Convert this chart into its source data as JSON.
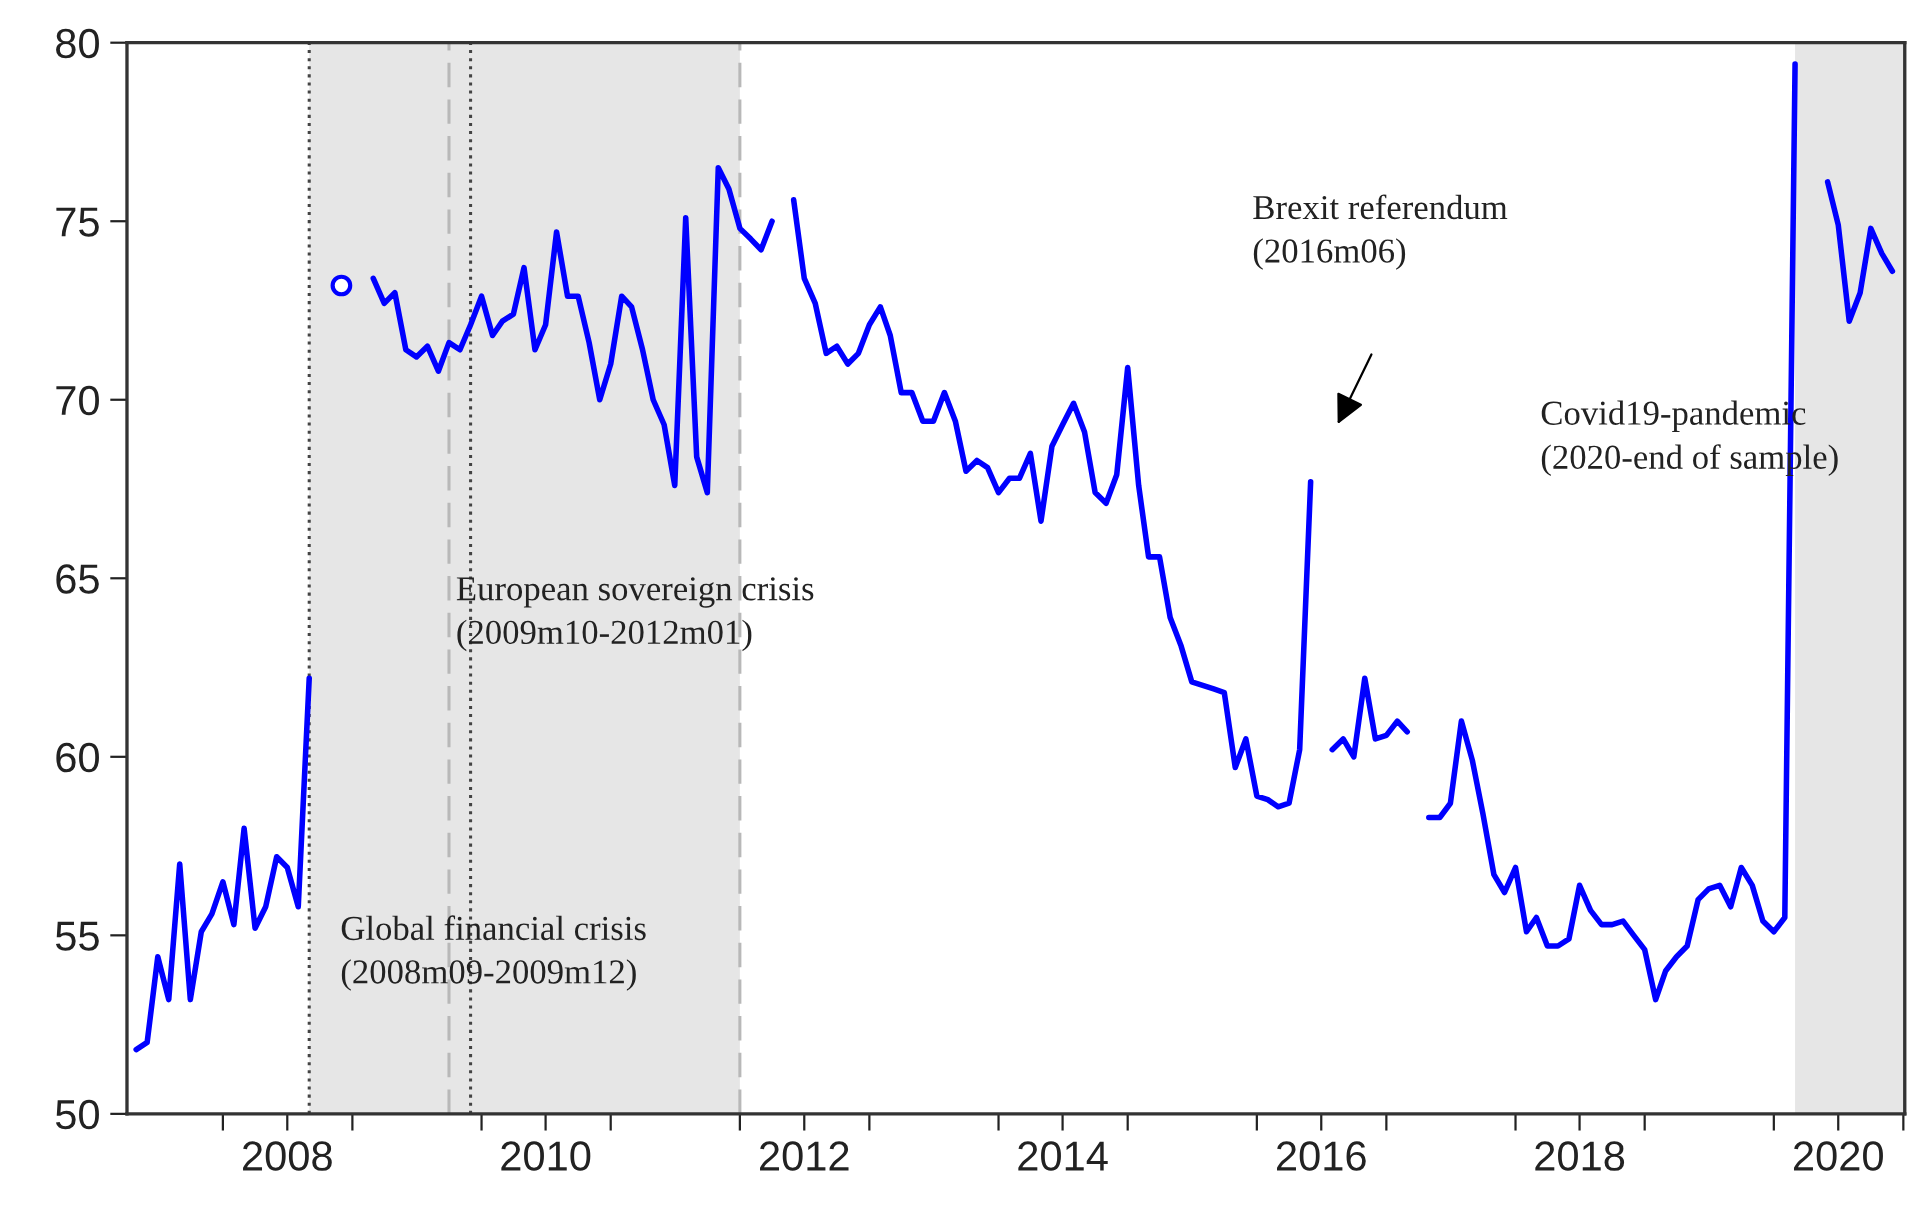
{
  "chart_data": {
    "type": "line",
    "x": [
      "2007-05",
      "2007-06",
      "2007-07",
      "2007-08",
      "2007-09",
      "2007-10",
      "2007-11",
      "2007-12",
      "2008-01",
      "2008-02",
      "2008-03",
      "2008-04",
      "2008-05",
      "2008-06",
      "2008-07",
      "2008-08",
      "2008-09",
      "2008-10",
      "2008-11",
      "2008-12",
      "2009-01",
      "2009-02",
      "2009-03",
      "2009-04",
      "2009-05",
      "2009-06",
      "2009-07",
      "2009-08",
      "2009-09",
      "2009-10",
      "2009-11",
      "2009-12",
      "2010-01",
      "2010-02",
      "2010-03",
      "2010-04",
      "2010-05",
      "2010-06",
      "2010-07",
      "2010-08",
      "2010-09",
      "2010-10",
      "2010-11",
      "2010-12",
      "2011-01",
      "2011-02",
      "2011-03",
      "2011-04",
      "2011-05",
      "2011-06",
      "2011-07",
      "2011-08",
      "2011-09",
      "2011-10",
      "2011-11",
      "2011-12",
      "2012-01",
      "2012-02",
      "2012-03",
      "2012-04",
      "2012-05",
      "2012-06",
      "2012-07",
      "2012-08",
      "2012-09",
      "2012-10",
      "2012-11",
      "2012-12",
      "2013-01",
      "2013-02",
      "2013-03",
      "2013-04",
      "2013-05",
      "2013-06",
      "2013-07",
      "2013-08",
      "2013-09",
      "2013-10",
      "2013-11",
      "2013-12",
      "2014-01",
      "2014-02",
      "2014-03",
      "2014-04",
      "2014-05",
      "2014-06",
      "2014-07",
      "2014-08",
      "2014-09",
      "2014-10",
      "2014-11",
      "2014-12",
      "2015-01",
      "2015-02",
      "2015-03",
      "2015-04",
      "2015-05",
      "2015-06",
      "2015-07",
      "2015-08",
      "2015-09",
      "2015-10",
      "2015-11",
      "2015-12",
      "2016-01",
      "2016-02",
      "2016-03",
      "2016-04",
      "2016-05",
      "2016-06",
      "2016-07",
      "2016-08",
      "2016-09",
      "2016-10",
      "2016-11",
      "2016-12",
      "2017-01",
      "2017-02",
      "2017-03",
      "2017-04",
      "2017-05",
      "2017-06",
      "2017-07",
      "2017-08",
      "2017-09",
      "2017-10",
      "2017-11",
      "2017-12",
      "2018-01",
      "2018-02",
      "2018-03",
      "2018-04",
      "2018-05",
      "2018-06",
      "2018-07",
      "2018-08",
      "2018-09",
      "2018-10",
      "2018-11",
      "2018-12",
      "2019-01",
      "2019-02",
      "2019-03",
      "2019-04",
      "2019-05",
      "2019-06",
      "2019-07",
      "2019-08",
      "2019-09",
      "2019-10",
      "2019-11",
      "2019-12",
      "2020-01",
      "2020-02",
      "2020-03",
      "2020-04",
      "2020-05",
      "2020-06",
      "2020-07",
      "2020-08",
      "2020-09",
      "2020-10",
      "2020-11",
      "2020-12"
    ],
    "series": [
      {
        "color": "#0000ff",
        "values": [
          51.8,
          52.0,
          54.4,
          53.2,
          57.0,
          53.2,
          55.1,
          55.6,
          56.5,
          55.3,
          58.0,
          55.2,
          55.8,
          57.2,
          56.9,
          55.8,
          62.2,
          null,
          null,
          73.2,
          null,
          null,
          73.4,
          72.7,
          73.0,
          71.4,
          71.2,
          71.5,
          70.8,
          71.6,
          71.4,
          72.1,
          72.9,
          71.8,
          72.2,
          72.4,
          73.7,
          71.4,
          72.1,
          74.7,
          72.9,
          72.9,
          71.6,
          70.0,
          71.0,
          72.9,
          72.6,
          71.4,
          70.0,
          69.3,
          67.6,
          75.1,
          68.4,
          67.4,
          76.5,
          75.9,
          74.8,
          74.5,
          74.2,
          75.0,
          null,
          75.6,
          73.4,
          72.7,
          71.3,
          71.5,
          71.0,
          71.3,
          72.1,
          72.6,
          71.8,
          70.2,
          70.2,
          69.4,
          69.4,
          70.2,
          69.4,
          68.0,
          68.3,
          68.1,
          67.4,
          67.8,
          67.8,
          68.5,
          66.6,
          68.7,
          69.3,
          69.9,
          69.1,
          67.4,
          67.1,
          67.9,
          70.9,
          67.6,
          65.6,
          65.6,
          63.9,
          63.1,
          62.1,
          62.0,
          61.9,
          61.8,
          59.7,
          60.5,
          58.9,
          58.8,
          58.6,
          58.7,
          60.2,
          67.7,
          null,
          60.2,
          60.5,
          60.0,
          62.2,
          60.5,
          60.6,
          61.0,
          60.7,
          null,
          58.3,
          58.3,
          58.7,
          61.0,
          59.9,
          58.4,
          56.7,
          56.2,
          56.9,
          55.1,
          55.5,
          54.7,
          54.7,
          54.9,
          56.4,
          55.7,
          55.3,
          55.3,
          55.4,
          55.0,
          54.6,
          53.2,
          54.0,
          54.4,
          54.7,
          56.0,
          56.3,
          56.4,
          55.8,
          56.9,
          56.4,
          55.4,
          55.1,
          55.5,
          79.4,
          null,
          null,
          76.1,
          74.9,
          72.2,
          73.0,
          74.8,
          74.1,
          73.6
        ]
      }
    ],
    "xlim": [
      "2007-04-05",
      "2021-01-05"
    ],
    "xticks": [
      {
        "value": "2008-01",
        "label": null
      },
      {
        "value": "2008-07",
        "label": "2008"
      },
      {
        "value": "2009-01",
        "label": null
      },
      {
        "value": "2010-01",
        "label": null
      },
      {
        "value": "2010-07",
        "label": "2010"
      },
      {
        "value": "2011-01",
        "label": null
      },
      {
        "value": "2012-01",
        "label": null
      },
      {
        "value": "2012-07",
        "label": "2012"
      },
      {
        "value": "2013-01",
        "label": null
      },
      {
        "value": "2014-01",
        "label": null
      },
      {
        "value": "2014-07",
        "label": "2014"
      },
      {
        "value": "2015-01",
        "label": null
      },
      {
        "value": "2016-01",
        "label": null
      },
      {
        "value": "2016-07",
        "label": "2016"
      },
      {
        "value": "2017-01",
        "label": null
      },
      {
        "value": "2018-01",
        "label": null
      },
      {
        "value": "2018-07",
        "label": "2018"
      },
      {
        "value": "2019-01",
        "label": null
      },
      {
        "value": "2020-01",
        "label": null
      },
      {
        "value": "2020-07",
        "label": "2020"
      },
      {
        "value": "2021-01",
        "label": null
      }
    ],
    "ylim": [
      50,
      80
    ],
    "yticks": [
      50,
      55,
      60,
      65,
      70,
      75,
      80
    ],
    "grid": false,
    "legend": false,
    "marker": "none",
    "line_style": "solid",
    "bands": [
      {
        "axis": "x",
        "from": "2008-09",
        "to": "2009-12",
        "color": "#e6e6e6"
      },
      {
        "axis": "x",
        "from": "2009-10",
        "to": "2012-01",
        "color": "#e6e6e6"
      },
      {
        "axis": "x",
        "from": "2020-03",
        "to": "2021-01-05",
        "color": "#e6e6e6"
      }
    ],
    "ref_lines": [
      {
        "axis": "x",
        "value": "2008-09",
        "color": "#444444",
        "line_style": "dotted"
      },
      {
        "axis": "x",
        "value": "2009-12",
        "color": "#444444",
        "line_style": "dotted"
      },
      {
        "axis": "x",
        "value": "2009-10",
        "color": "#b8b8b8",
        "line_style": "dashed"
      },
      {
        "axis": "x",
        "value": "2012-01",
        "color": "#b8b8b8",
        "line_style": "dashed"
      }
    ],
    "annotations": [
      "Global financial crisis\n(2008m09-2009m12)",
      "European sovereign crisis\n(2009m10-2012m01)",
      "Brexit referendum\n(2016m06)",
      "Covid19-pandemic\n(2020-end of sample)"
    ]
  }
}
